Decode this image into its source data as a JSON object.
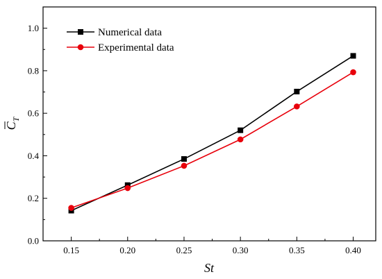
{
  "chart_data": {
    "type": "line",
    "x": [
      0.15,
      0.2,
      0.25,
      0.3,
      0.35,
      0.4
    ],
    "x_tick_labels": [
      "0.15",
      "0.20",
      "0.25",
      "0.30",
      "0.35",
      "0.40"
    ],
    "y_tick_labels": [
      "0.0",
      "0.2",
      "0.4",
      "0.6",
      "0.8",
      "1.0"
    ],
    "y_ticks": [
      0.0,
      0.2,
      0.4,
      0.6,
      0.8,
      1.0
    ],
    "xlim": [
      0.125,
      0.42
    ],
    "ylim": [
      0.0,
      1.1
    ],
    "xlabel": "St",
    "ylabel_main": "C",
    "ylabel_sub": "T",
    "grid": false,
    "legend_position": "top-left",
    "series": [
      {
        "name": "Numerical data",
        "values": [
          0.142,
          0.262,
          0.385,
          0.52,
          0.702,
          0.87
        ],
        "color": "#000000",
        "marker": "square"
      },
      {
        "name": "Experimental data",
        "values": [
          0.155,
          0.248,
          0.353,
          0.477,
          0.632,
          0.793
        ],
        "color": "#e8000b",
        "marker": "circle"
      }
    ]
  }
}
